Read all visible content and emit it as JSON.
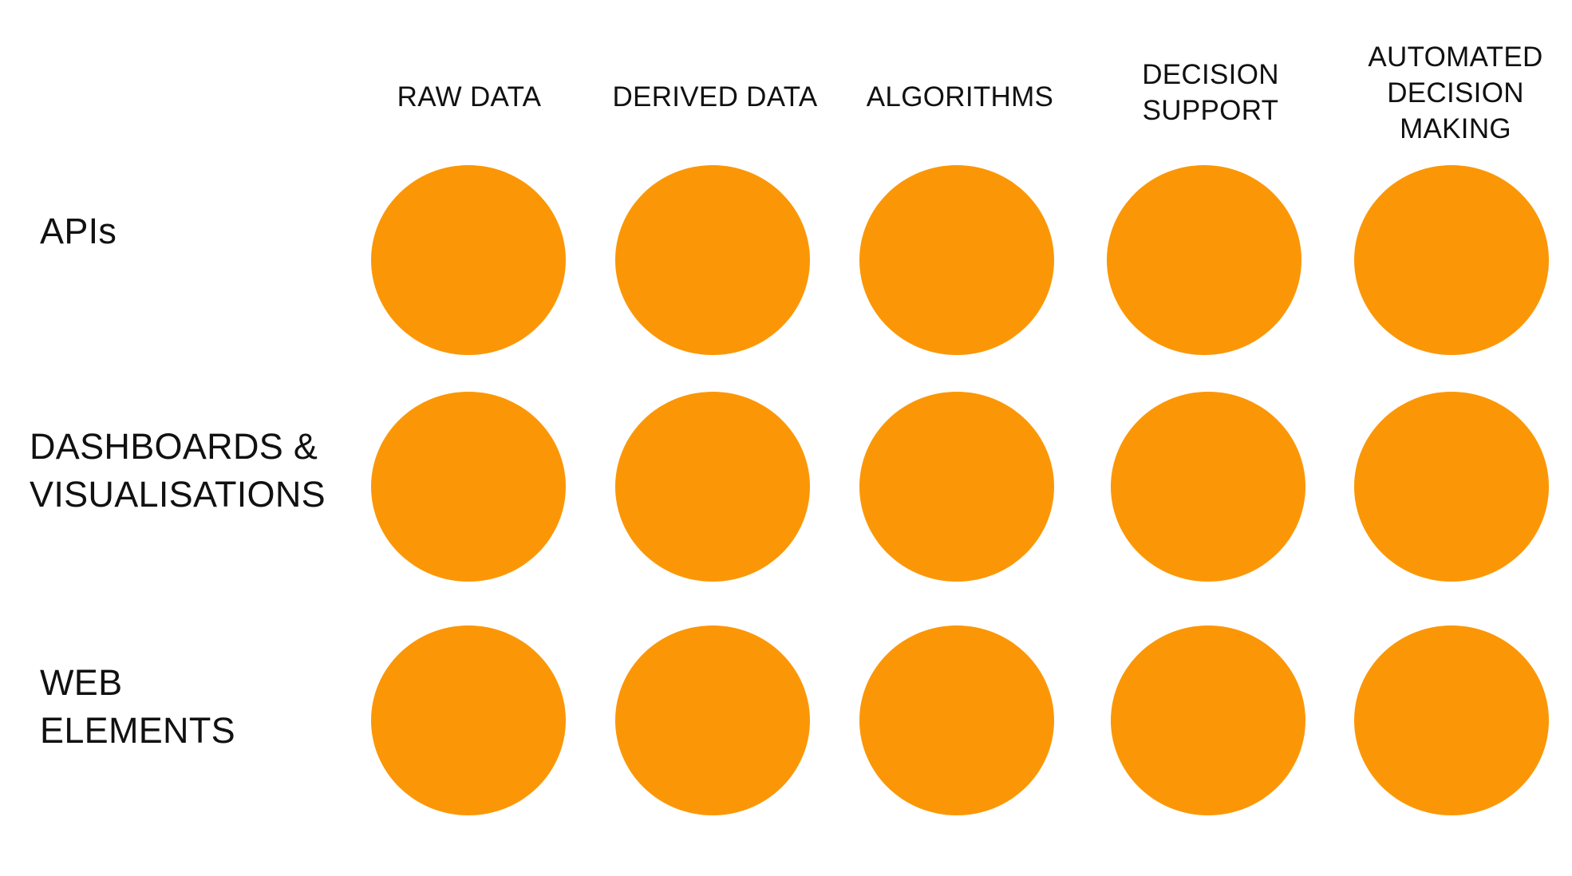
{
  "columns": [
    {
      "label": "RAW DATA"
    },
    {
      "label": "DERIVED DATA"
    },
    {
      "label": "ALGORITHMS"
    },
    {
      "label": "DECISION\nSUPPORT"
    },
    {
      "label": "AUTOMATED\nDECISION\nMAKING"
    }
  ],
  "rows": [
    {
      "label": "APIs"
    },
    {
      "label": "DASHBOARDS &\nVISUALISATIONS"
    },
    {
      "label": "WEB\nELEMENTS"
    }
  ],
  "style": {
    "dot_color": "#FB9706"
  }
}
